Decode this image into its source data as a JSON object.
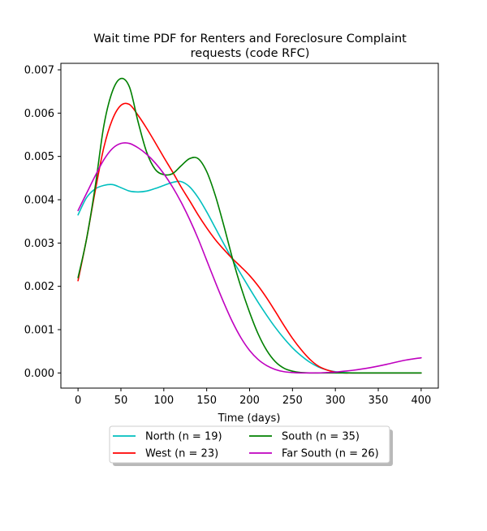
{
  "chart_data": {
    "type": "line",
    "title": "Wait time PDF for Renters and Foreclosure Complaint requests (code RFC)",
    "title_lines": [
      "Wait time PDF for Renters and Foreclosure Complaint",
      "requests (code RFC)"
    ],
    "xlabel": "Time (days)",
    "ylabel": "",
    "xlim": [
      -20,
      420
    ],
    "ylim": [
      -0.00035,
      0.00715
    ],
    "xticks": [
      0,
      50,
      100,
      150,
      200,
      250,
      300,
      350,
      400
    ],
    "xtick_labels": [
      "0",
      "50",
      "100",
      "150",
      "200",
      "250",
      "300",
      "350",
      "400"
    ],
    "yticks": [
      0.0,
      0.001,
      0.002,
      0.003,
      0.004,
      0.005,
      0.006,
      0.007
    ],
    "ytick_labels": [
      "0.000",
      "0.001",
      "0.002",
      "0.003",
      "0.004",
      "0.005",
      "0.006",
      "0.007"
    ],
    "grid": false,
    "legend_placement": "below plot, center, 2 columns",
    "series": [
      {
        "name": "North (n = 19)",
        "color": "#00bfbf",
        "x": [
          0,
          10,
          20,
          30,
          40,
          50,
          60,
          70,
          80,
          90,
          100,
          110,
          120,
          130,
          140,
          150,
          160,
          170,
          180,
          190,
          200,
          210,
          220,
          230,
          240,
          250,
          260,
          270,
          280,
          290,
          300,
          310,
          320,
          340,
          360,
          380,
          400
        ],
        "y": [
          0.00365,
          0.00405,
          0.00425,
          0.00433,
          0.00435,
          0.00428,
          0.0042,
          0.00418,
          0.0042,
          0.00426,
          0.00433,
          0.0044,
          0.00442,
          0.0043,
          0.00405,
          0.00372,
          0.00335,
          0.00298,
          0.00262,
          0.00228,
          0.00195,
          0.00163,
          0.00133,
          0.00105,
          0.0008,
          0.00058,
          0.0004,
          0.00025,
          0.00014,
          7e-05,
          3e-05,
          1e-05,
          0.0,
          0.0,
          0.0,
          0.0,
          0.0
        ]
      },
      {
        "name": "West (n = 23)",
        "color": "#ff0000",
        "x": [
          0,
          10,
          20,
          30,
          40,
          50,
          60,
          70,
          80,
          90,
          100,
          110,
          120,
          130,
          140,
          150,
          160,
          170,
          180,
          190,
          200,
          210,
          220,
          230,
          240,
          250,
          260,
          270,
          280,
          290,
          300,
          310,
          320,
          340,
          360,
          380,
          400
        ],
        "y": [
          0.00213,
          0.0031,
          0.0042,
          0.0052,
          0.00585,
          0.00618,
          0.0062,
          0.00595,
          0.00565,
          0.00532,
          0.00498,
          0.00465,
          0.0043,
          0.00398,
          0.00365,
          0.00335,
          0.00308,
          0.00285,
          0.00264,
          0.00245,
          0.00225,
          0.00201,
          0.00173,
          0.00142,
          0.0011,
          0.0008,
          0.00054,
          0.00032,
          0.00016,
          7e-05,
          2e-05,
          0.0,
          0.0,
          0.0,
          0.0,
          0.0,
          0.0
        ]
      },
      {
        "name": "South (n = 35)",
        "color": "#008000",
        "x": [
          0,
          10,
          20,
          30,
          40,
          50,
          60,
          70,
          80,
          90,
          100,
          110,
          120,
          130,
          140,
          150,
          160,
          170,
          180,
          190,
          200,
          210,
          220,
          230,
          240,
          250,
          260,
          270,
          280,
          290,
          300,
          310,
          320,
          340,
          360,
          380,
          400
        ],
        "y": [
          0.0022,
          0.0031,
          0.0043,
          0.0057,
          0.0065,
          0.0068,
          0.0066,
          0.0058,
          0.0051,
          0.0047,
          0.00458,
          0.0046,
          0.00478,
          0.00495,
          0.00495,
          0.00465,
          0.0041,
          0.0034,
          0.00265,
          0.00198,
          0.0014,
          0.0009,
          0.00052,
          0.00026,
          0.00011,
          4e-05,
          1e-05,
          0.0,
          0.0,
          0.0,
          0.0,
          0.0,
          0.0,
          0.0,
          0.0,
          0.0,
          0.0
        ]
      },
      {
        "name": "Far South (n = 26)",
        "color": "#bf00bf",
        "x": [
          0,
          10,
          20,
          30,
          40,
          50,
          60,
          70,
          80,
          90,
          100,
          110,
          120,
          130,
          140,
          150,
          160,
          170,
          180,
          190,
          200,
          210,
          220,
          230,
          240,
          250,
          260,
          270,
          280,
          290,
          300,
          310,
          320,
          340,
          360,
          380,
          400
        ],
        "y": [
          0.00375,
          0.00415,
          0.00455,
          0.00492,
          0.00518,
          0.0053,
          0.0053,
          0.0052,
          0.00505,
          0.00485,
          0.0046,
          0.0043,
          0.00395,
          0.00355,
          0.0031,
          0.0026,
          0.0021,
          0.00162,
          0.00118,
          0.00081,
          0.00052,
          0.00031,
          0.00017,
          8e-05,
          3e-05,
          1e-05,
          0.0,
          0.0,
          0.0,
          1e-05,
          2e-05,
          4e-05,
          6e-05,
          0.00012,
          0.0002,
          0.00029,
          0.00035
        ]
      }
    ]
  }
}
